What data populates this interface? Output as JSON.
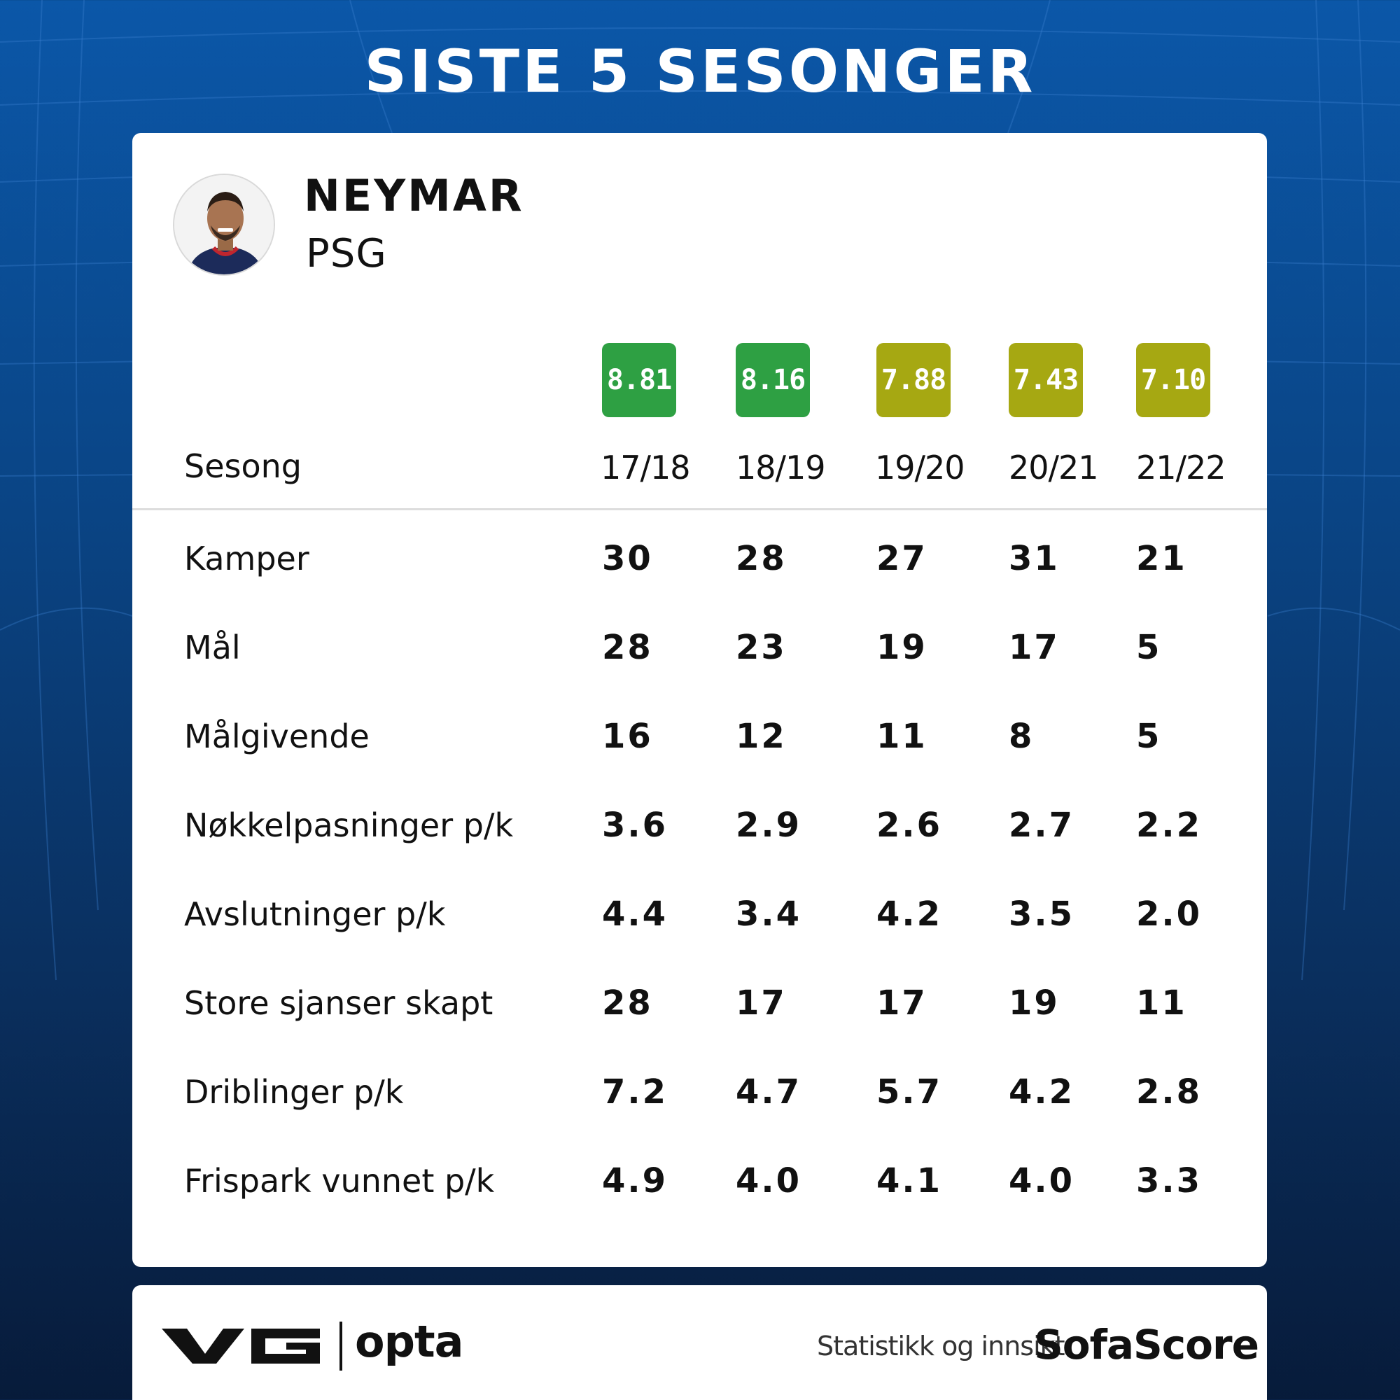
{
  "page": {
    "title": "SISTE 5 SESONGER"
  },
  "player": {
    "name": "NEYMAR",
    "team": "PSG"
  },
  "table": {
    "season_label": "Sesong",
    "seasons": [
      {
        "label": "17/18",
        "rating": "8.81",
        "rating_color": "#2ea043"
      },
      {
        "label": "18/19",
        "rating": "8.16",
        "rating_color": "#2ea043"
      },
      {
        "label": "19/20",
        "rating": "7.88",
        "rating_color": "#a6a812"
      },
      {
        "label": "20/21",
        "rating": "7.43",
        "rating_color": "#a6a812"
      },
      {
        "label": "21/22",
        "rating": "7.10",
        "rating_color": "#a6a812"
      }
    ],
    "rows": [
      {
        "label": "Kamper",
        "values": [
          "30",
          "28",
          "27",
          "31",
          "21"
        ]
      },
      {
        "label": "Mål",
        "values": [
          "28",
          "23",
          "19",
          "17",
          "5"
        ]
      },
      {
        "label": "Målgivende",
        "values": [
          "16",
          "12",
          "11",
          "8",
          "5"
        ]
      },
      {
        "label": "Nøkkelpasninger p/k",
        "values": [
          "3.6",
          "2.9",
          "2.6",
          "2.7",
          "2.2"
        ]
      },
      {
        "label": "Avslutninger p/k",
        "values": [
          "4.4",
          "3.4",
          "4.2",
          "3.5",
          "2.0"
        ]
      },
      {
        "label": "Store sjanser skapt",
        "values": [
          "28",
          "17",
          "17",
          "19",
          "11"
        ]
      },
      {
        "label": "Driblinger p/k",
        "values": [
          "7.2",
          "4.7",
          "5.7",
          "4.2",
          "2.8"
        ]
      },
      {
        "label": "Frispark vunnet p/k",
        "values": [
          "4.9",
          "4.0",
          "4.1",
          "4.0",
          "3.3"
        ]
      }
    ]
  },
  "footer": {
    "brand_logo": "VG",
    "partner": "opta",
    "credit_text": "Statistikk og innsikt",
    "provider": "SofaScore"
  }
}
